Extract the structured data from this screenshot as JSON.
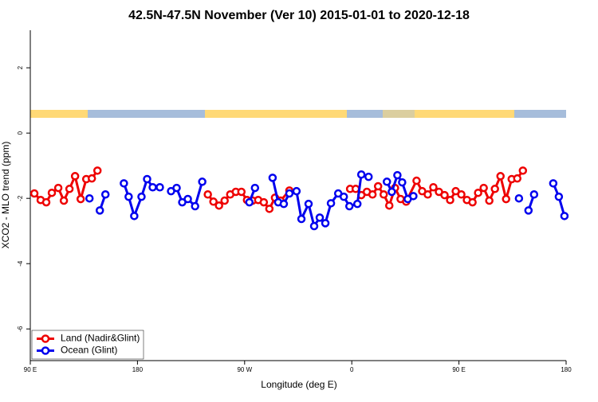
{
  "chart_data": {
    "type": "line",
    "title": "42.5N-47.5N November (Ver 10)   2015-01-01 to 2020-12-18",
    "x_label": "Longitude (deg E)",
    "y_label": "XCO2 - MLO trend (ppm)",
    "xlim": [
      90,
      540
    ],
    "xticks": [
      {
        "value": 90,
        "label": "90 E"
      },
      180,
      {
        "value": 270,
        "label": "90 W"
      },
      {
        "value": 360,
        "label": "0"
      },
      {
        "value": 450,
        "label": "90 E"
      },
      {
        "value": 540,
        "label": "180"
      }
    ],
    "ylim": [
      -6.97,
      3.15
    ],
    "yticks": [
      -6,
      -4,
      -2,
      0,
      2
    ],
    "legend": "bottomleft",
    "series": [
      {
        "name": "Land (Nadir&Glint)",
        "color": "#ee0000",
        "x": [
          93.4,
          98.7,
          103.4,
          108.1,
          113.5,
          118.2,
          122.9,
          127.6,
          132.3,
          137.0,
          141.7,
          146.4,
          null,
          239.1,
          243.8,
          248.5,
          253.2,
          257.9,
          262.6,
          267.3,
          272.0,
          276.7,
          281.4,
          286.1,
          290.8,
          295.5,
          300.2,
          307.6,
          null,
          358.6,
          363.3,
          368.0,
          372.7,
          377.4,
          382.1,
          386.8,
          391.5,
          396.3,
          401.0,
          405.7,
          414.4,
          419.1,
          423.8,
          428.5,
          433.2,
          437.9,
          442.6,
          447.3,
          452.0,
          456.7,
          461.4,
          466.1,
          470.8,
          475.5,
          480.2,
          484.9,
          489.6,
          494.3,
          499.0,
          503.7
        ],
        "values": [
          -1.85,
          -2.05,
          -2.12,
          -1.83,
          -1.68,
          -2.07,
          -1.71,
          -1.32,
          -2.02,
          -1.41,
          -1.39,
          -1.15,
          null,
          -1.88,
          -2.1,
          -2.22,
          -2.07,
          -1.88,
          -1.8,
          -1.8,
          -2.05,
          -2.07,
          -2.05,
          -2.12,
          -2.32,
          -1.98,
          -2.07,
          -1.76,
          null,
          -1.71,
          -1.71,
          -1.9,
          -1.8,
          -1.88,
          -1.63,
          -1.88,
          -2.22,
          -1.68,
          -2.02,
          -2.1,
          -1.46,
          -1.78,
          -1.88,
          -1.66,
          -1.8,
          -1.9,
          -2.05,
          -1.78,
          -1.88,
          -2.05,
          -2.12,
          -1.83,
          -1.68,
          -2.07,
          -1.71,
          -1.32,
          -2.02,
          -1.41,
          -1.39,
          -1.15
        ]
      },
      {
        "name": "Ocean (Glint)",
        "color": "#0000ee",
        "x": [
          139.7,
          null,
          148.4,
          153.1,
          null,
          168.6,
          172.6,
          177.3,
          183.4,
          188.1,
          192.8,
          198.8,
          null,
          208.2,
          212.9,
          217.6,
          222.3,
          228.4,
          234.4,
          null,
          274.0,
          278.7,
          null,
          293.5,
          298.2,
          302.9,
          307.6,
          313.6,
          317.7,
          323.7,
          328.4,
          333.1,
          337.8,
          342.5,
          348.6,
          353.3,
          358.0,
          364.7,
          368.0,
          374.1,
          null,
          389.5,
          393.6,
          398.3,
          402.3,
          407.0,
          411.7,
          null,
          500.4,
          null,
          508.4,
          513.1,
          null,
          529.2,
          533.9,
          538.6
        ],
        "values": [
          -2.0,
          null,
          -2.37,
          -1.88,
          null,
          -1.54,
          -1.95,
          -2.54,
          -1.95,
          -1.41,
          -1.66,
          -1.66,
          null,
          -1.78,
          -1.68,
          -2.12,
          -2.02,
          -2.24,
          -1.49,
          null,
          -2.12,
          -1.68,
          null,
          -1.37,
          -2.12,
          -2.17,
          -1.85,
          -1.78,
          -2.63,
          -2.17,
          -2.85,
          -2.59,
          -2.76,
          -2.15,
          -1.85,
          -1.95,
          -2.24,
          -2.17,
          -1.27,
          -1.34,
          null,
          -1.49,
          -1.8,
          -1.29,
          -1.51,
          -2.02,
          -1.93,
          null,
          -2.0,
          null,
          -2.37,
          -1.88,
          null,
          -1.54,
          -1.95,
          -2.54
        ]
      }
    ]
  }
}
